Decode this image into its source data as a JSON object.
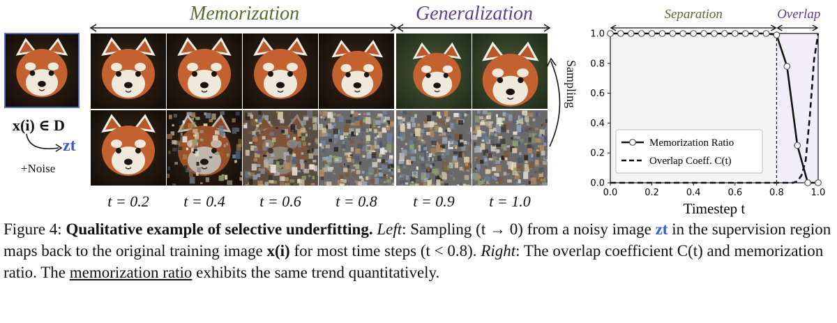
{
  "left_panel": {
    "header_memorization": "Memorization",
    "header_generalization": "Generalization",
    "header_memorization_color": "#556b2f",
    "header_generalization_color": "#5b3d98",
    "input_label": "x(i) ∈ D",
    "zt_label": "zt",
    "zt_color": "#3b5bd6",
    "noise_label": "+Noise",
    "sampling_label": "Sampling",
    "t_labels": [
      "t = 0.2",
      "t = 0.4",
      "t = 0.6",
      "t = 0.8",
      "t = 0.9",
      "t = 1.0"
    ]
  },
  "chart_data": {
    "type": "line",
    "region_labels": [
      "Separation",
      "Overlap"
    ],
    "region_label_colors": {
      "Separation": "#556b2f",
      "Overlap": "#5b3d98"
    },
    "xlabel": "Timestep t",
    "ylabel": "",
    "xlim": [
      0.0,
      1.0
    ],
    "ylim": [
      0.0,
      1.0
    ],
    "xticks": [
      "0.0",
      "0.2",
      "0.4",
      "0.6",
      "0.8",
      "1.0"
    ],
    "yticks": [
      "0.0",
      "0.2",
      "0.4",
      "0.6",
      "0.8",
      "1.0"
    ],
    "divider_x": 0.8,
    "legend_position": "lower-left",
    "series": [
      {
        "name": "Memorization Ratio",
        "style": "solid-markers",
        "x": [
          0.0,
          0.05,
          0.1,
          0.15,
          0.2,
          0.25,
          0.3,
          0.35,
          0.4,
          0.45,
          0.5,
          0.55,
          0.6,
          0.65,
          0.7,
          0.75,
          0.8,
          0.85,
          0.9,
          0.95,
          1.0
        ],
        "y": [
          1.0,
          1.0,
          1.0,
          1.0,
          1.0,
          1.0,
          1.0,
          1.0,
          1.0,
          1.0,
          1.0,
          1.0,
          1.0,
          1.0,
          1.0,
          1.0,
          0.99,
          0.78,
          0.25,
          0.0,
          0.0
        ]
      },
      {
        "name": "Overlap Coeff. C(t)",
        "style": "dashed",
        "x": [
          0.0,
          0.8,
          0.85,
          0.88,
          0.9,
          0.92,
          0.94,
          0.96,
          0.98,
          1.0
        ],
        "y": [
          0.0,
          0.0,
          0.0,
          0.0,
          0.01,
          0.05,
          0.15,
          0.45,
          0.82,
          1.0
        ]
      }
    ]
  },
  "caption": {
    "figure": "Figure 4:",
    "title": "Qualitative example of selective underfitting.",
    "left_label": "Left",
    "part1": ": Sampling (t → 0) from a noisy image ",
    "zt": "zt",
    "part2": " in the supervision region maps back to the original training image ",
    "xi": "x(i)",
    "part3": " for most time steps (t < 0.8). ",
    "right_label": "Right",
    "part4": ": The overlap coefficient C(t) and memorization ratio. The ",
    "underlined": "memorization ratio",
    "part5": " exhibits the same trend quantitatively."
  }
}
